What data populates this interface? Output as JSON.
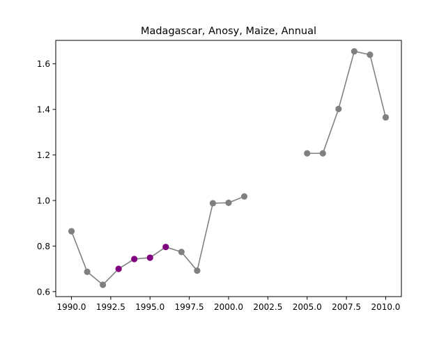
{
  "chart_data": {
    "type": "line",
    "title": "Madagascar, Anosy, Maize, Annual",
    "xlabel": "",
    "ylabel": "",
    "xlim": [
      1989.0,
      2011.0
    ],
    "ylim": [
      0.578,
      1.703
    ],
    "x_ticks": [
      1990.0,
      1992.5,
      1995.0,
      1997.5,
      2000.0,
      2002.5,
      2005.0,
      2007.5,
      2010.0
    ],
    "x_tick_labels": [
      "1990.0",
      "1992.5",
      "1995.0",
      "1997.5",
      "2000.0",
      "2002.5",
      "2005.0",
      "2007.5",
      "2010.0"
    ],
    "y_ticks": [
      0.6,
      0.8,
      1.0,
      1.2,
      1.4,
      1.6
    ],
    "y_tick_labels": [
      "0.6",
      "0.8",
      "1.0",
      "1.2",
      "1.4",
      "1.6"
    ],
    "grid": false,
    "legend": "none",
    "line_color": "#808080",
    "highlight_color": "#800080",
    "segments": [
      [
        1990,
        1991,
        1992,
        1993,
        1994,
        1995,
        1996,
        1997,
        1998,
        1999,
        2000,
        2001
      ],
      [
        2005,
        2006,
        2007,
        2008,
        2009,
        2010
      ]
    ],
    "series": [
      {
        "points": [
          {
            "x": 1990,
            "y": 0.865,
            "highlight": false
          },
          {
            "x": 1991,
            "y": 0.687,
            "highlight": false
          },
          {
            "x": 1992,
            "y": 0.63,
            "highlight": false
          },
          {
            "x": 1993,
            "y": 0.7,
            "highlight": true
          },
          {
            "x": 1994,
            "y": 0.743,
            "highlight": true
          },
          {
            "x": 1995,
            "y": 0.749,
            "highlight": true
          },
          {
            "x": 1996,
            "y": 0.796,
            "highlight": true
          },
          {
            "x": 1997,
            "y": 0.774,
            "highlight": false
          },
          {
            "x": 1998,
            "y": 0.692,
            "highlight": false
          },
          {
            "x": 1999,
            "y": 0.988,
            "highlight": false
          },
          {
            "x": 2000,
            "y": 0.99,
            "highlight": false
          },
          {
            "x": 2001,
            "y": 1.018,
            "highlight": false
          },
          {
            "x": 2005,
            "y": 1.207,
            "highlight": false
          },
          {
            "x": 2006,
            "y": 1.207,
            "highlight": false
          },
          {
            "x": 2007,
            "y": 1.402,
            "highlight": false
          },
          {
            "x": 2008,
            "y": 1.655,
            "highlight": false
          },
          {
            "x": 2009,
            "y": 1.64,
            "highlight": false
          },
          {
            "x": 2010,
            "y": 1.365,
            "highlight": false
          }
        ]
      }
    ]
  }
}
